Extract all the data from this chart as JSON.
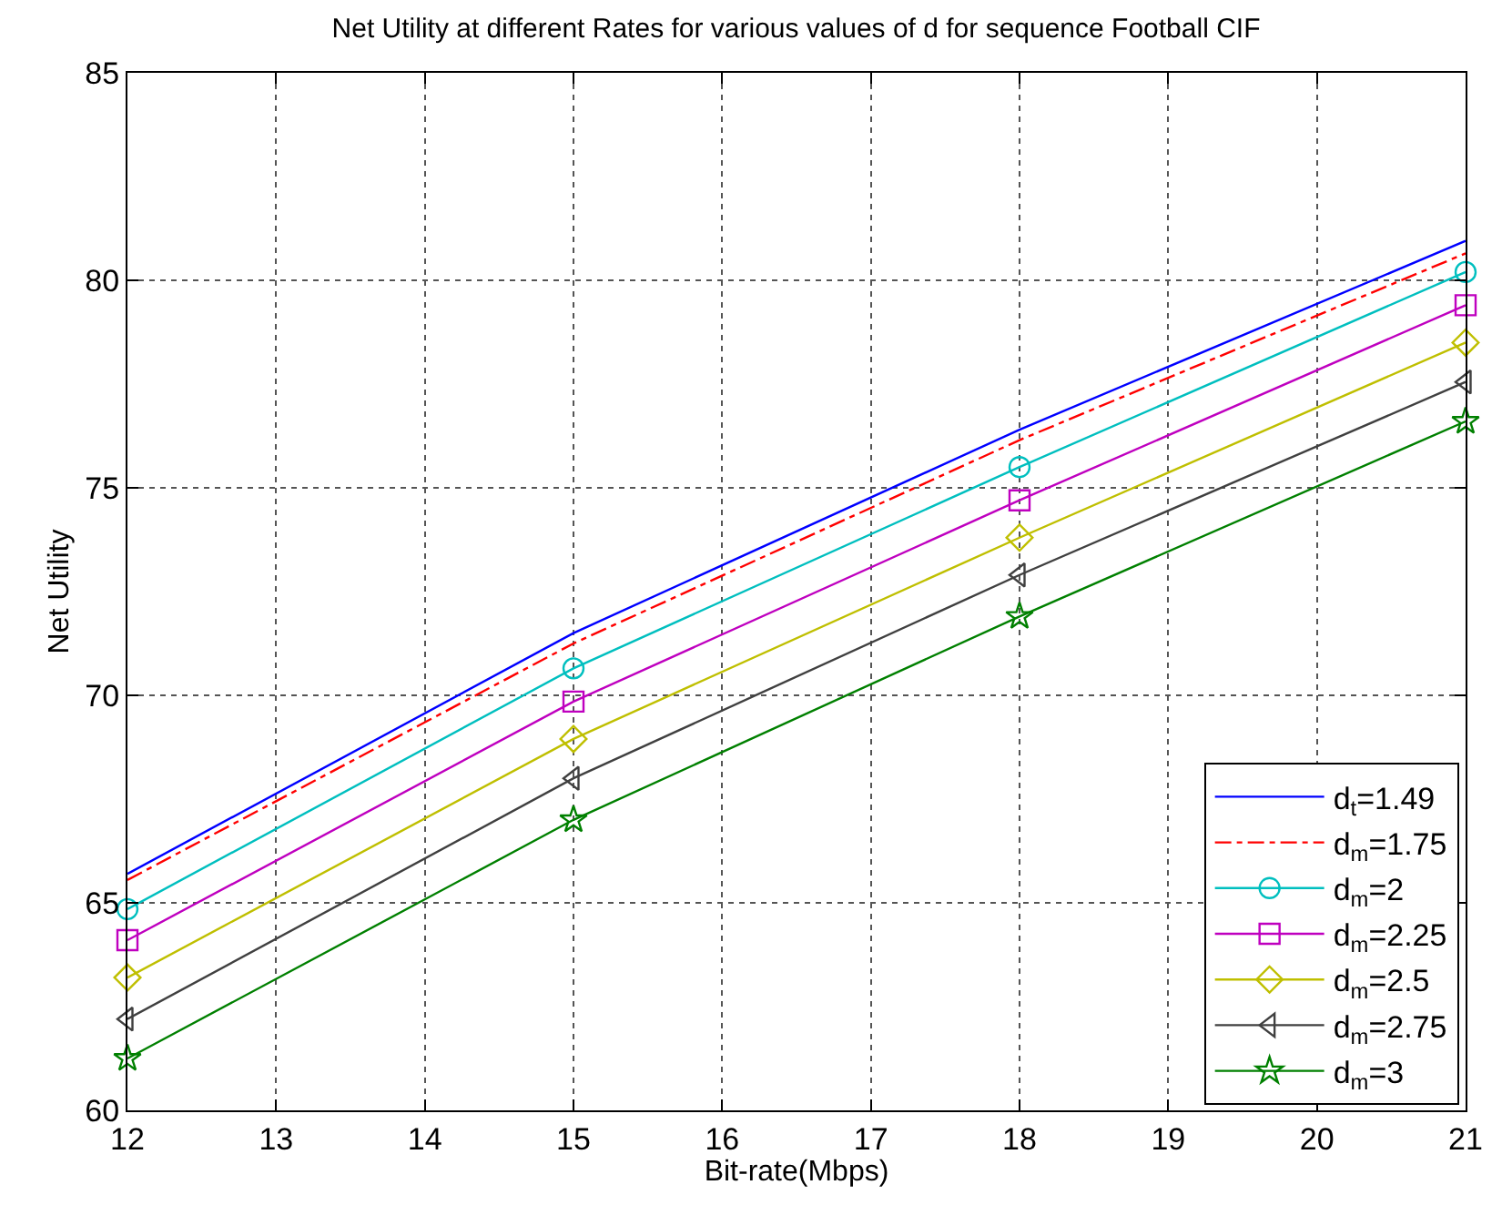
{
  "chart_data": {
    "type": "line",
    "title": "Net Utility at different Rates for various values of d for sequence Football CIF",
    "xlabel": "Bit-rate(Mbps)",
    "ylabel": "Net Utility",
    "x": [
      12,
      15,
      18,
      21
    ],
    "series": [
      {
        "name": "d$_{t}$=1.49",
        "color": "#0000ff",
        "values": [
          65.7,
          71.5,
          76.4,
          80.95
        ],
        "marker": "none",
        "line_style": "solid"
      },
      {
        "name": "d$_{m}$=1.75",
        "color": "#ff0000",
        "values": [
          65.55,
          71.25,
          76.15,
          80.65
        ],
        "marker": "none",
        "line_style": "dashed"
      },
      {
        "name": "d$_{m}$=2",
        "color": "#00bfbf",
        "values": [
          64.85,
          70.65,
          75.5,
          80.2
        ],
        "marker": "circle",
        "line_style": "solid"
      },
      {
        "name": "d$_{m}$=2.25",
        "color": "#bf00bf",
        "values": [
          64.1,
          69.85,
          74.7,
          79.4
        ],
        "marker": "square",
        "line_style": "solid"
      },
      {
        "name": "d$_{m}$=2.5",
        "color": "#bfbf00",
        "values": [
          63.2,
          68.95,
          73.8,
          78.5
        ],
        "marker": "diamond",
        "line_style": "solid"
      },
      {
        "name": "d$_{m}$=2.75",
        "color": "#404040",
        "values": [
          62.2,
          68.0,
          72.9,
          77.55
        ],
        "marker": "triangle",
        "line_style": "solid"
      },
      {
        "name": "d$_{m}$=3",
        "color": "#008000",
        "values": [
          61.25,
          67.0,
          71.9,
          76.6
        ],
        "marker": "star",
        "line_style": "solid"
      }
    ],
    "xlim": [
      12,
      21
    ],
    "xticks": [
      12,
      13,
      14,
      15,
      16,
      17,
      18,
      19,
      20,
      21
    ],
    "ylim": [
      60,
      85
    ],
    "yticks": [
      60,
      65,
      70,
      75,
      80,
      85
    ],
    "grid": true,
    "legend": "bottom right"
  }
}
